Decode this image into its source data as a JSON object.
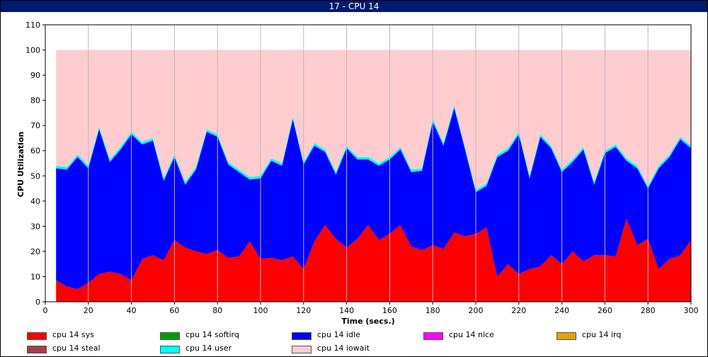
{
  "window": {
    "title": "17 - CPU 14"
  },
  "chart_data": {
    "type": "area",
    "stacked": true,
    "title": "",
    "xlabel": "Time (secs.)",
    "ylabel": "CPU Utilization",
    "xlim": [
      0,
      300
    ],
    "ylim": [
      0,
      110
    ],
    "xticks": [
      0,
      20,
      40,
      60,
      80,
      100,
      120,
      140,
      160,
      180,
      200,
      220,
      240,
      260,
      280,
      300
    ],
    "yticks": [
      0,
      10,
      20,
      30,
      40,
      50,
      60,
      70,
      80,
      90,
      100,
      110
    ],
    "grid": "vertical",
    "legend_position": "bottom",
    "x": [
      5,
      10,
      15,
      20,
      25,
      30,
      35,
      40,
      45,
      50,
      55,
      60,
      65,
      70,
      75,
      80,
      85,
      90,
      95,
      100,
      105,
      110,
      115,
      120,
      125,
      130,
      135,
      140,
      145,
      150,
      155,
      160,
      165,
      170,
      175,
      180,
      185,
      190,
      195,
      200,
      205,
      210,
      215,
      220,
      225,
      230,
      235,
      240,
      245,
      250,
      255,
      260,
      265,
      270,
      275,
      280,
      285,
      290,
      295,
      300
    ],
    "series": [
      {
        "name": "cpu 14 sys",
        "color": "#ff0000",
        "values": [
          8.5,
          6,
          5,
          7.5,
          11,
          12,
          11,
          8.5,
          17,
          18.5,
          16.5,
          24.5,
          21.5,
          20,
          19,
          20.5,
          17.5,
          18,
          24,
          17,
          17.5,
          16.5,
          18,
          13,
          24,
          30.5,
          25,
          21.5,
          25,
          30.5,
          24.5,
          27,
          30.5,
          22,
          20.5,
          22.5,
          21,
          27.5,
          26,
          27,
          29.5,
          10,
          15,
          11,
          13,
          14,
          18.5,
          15,
          20,
          16,
          18.5,
          18.5,
          18,
          33,
          22.5,
          25,
          13,
          17,
          18.5,
          24.5
        ]
      },
      {
        "name": "cpu 14 softirq",
        "color": "#00a000",
        "values": [
          0,
          0,
          0,
          0,
          0,
          0,
          0,
          0,
          0,
          0,
          0,
          0,
          0,
          0,
          0,
          0,
          0,
          0,
          0,
          0,
          0,
          0,
          0,
          0,
          0,
          0,
          0,
          0,
          0,
          0,
          0,
          0,
          0,
          0,
          0,
          0,
          0,
          0,
          0,
          0,
          0,
          0,
          0,
          0,
          0,
          0,
          0,
          0,
          0,
          0,
          0,
          0,
          0,
          0,
          0,
          0,
          0,
          0,
          0,
          0
        ]
      },
      {
        "name": "cpu 14 idle",
        "color": "#0000ff",
        "values": [
          44.5,
          46.5,
          52.5,
          45.5,
          57.5,
          43.5,
          49.5,
          58,
          45.5,
          45.5,
          31.5,
          33,
          25,
          32.5,
          48.5,
          45,
          37,
          33.5,
          24.5,
          32,
          38.5,
          37.5,
          54.5,
          41.5,
          38,
          29,
          25.5,
          39.5,
          31.5,
          26,
          29.5,
          29.5,
          30,
          29.5,
          31.5,
          49,
          41,
          49.5,
          34.5,
          16.5,
          16.5,
          47.5,
          45,
          55.5,
          36,
          51.5,
          42.5,
          36.5,
          35.5,
          44.5,
          28,
          40.5,
          43.5,
          23,
          30.5,
          20,
          40,
          40.5,
          46,
          36.5
        ]
      },
      {
        "name": "cpu 14 nice",
        "color": "#ff00ff",
        "values": [
          0,
          0,
          0,
          0,
          0,
          0,
          0,
          0,
          0,
          0,
          0,
          0,
          0,
          0,
          0,
          0,
          0,
          0,
          0,
          0,
          0,
          0,
          0,
          0,
          0,
          0,
          0,
          0,
          0,
          0,
          0,
          0,
          0,
          0,
          0,
          0,
          0,
          0,
          0,
          0,
          0,
          0,
          0,
          0,
          0,
          0,
          0,
          0,
          0,
          0,
          0,
          0,
          0,
          0,
          0,
          0,
          0,
          0,
          0,
          0
        ]
      },
      {
        "name": "cpu 14 irq",
        "color": "#e6a000",
        "values": [
          0,
          0,
          0,
          0,
          0,
          0,
          0,
          0,
          0,
          0,
          0,
          0,
          0,
          0,
          0,
          0,
          0,
          0,
          0,
          0,
          0,
          0,
          0,
          0,
          0,
          0,
          0,
          0,
          0,
          0,
          0,
          0,
          0,
          0,
          0,
          0,
          0,
          0,
          0,
          0,
          0,
          0,
          0,
          0,
          0,
          0,
          0,
          0,
          0,
          0,
          0,
          0,
          0,
          0,
          0,
          0,
          0,
          0,
          0,
          0
        ]
      },
      {
        "name": "cpu 14 steal",
        "color": "#a0404a",
        "values": [
          0,
          0,
          0,
          0,
          0,
          0,
          0,
          0,
          0,
          0,
          0,
          0,
          0,
          0,
          0,
          0,
          0,
          0,
          0,
          0,
          0,
          0,
          0,
          0,
          0,
          0,
          0,
          0,
          0,
          0,
          0,
          0,
          0,
          0,
          0,
          0,
          0,
          0,
          0,
          0,
          0,
          0,
          0,
          0,
          0,
          0,
          0,
          0,
          0,
          0,
          0,
          0,
          0,
          0,
          0,
          0,
          0,
          0,
          0,
          0
        ]
      },
      {
        "name": "cpu 14 user",
        "color": "#00ffff",
        "values": [
          1,
          1,
          1,
          1,
          1,
          1,
          1,
          1,
          1,
          1,
          1,
          1,
          1,
          1,
          1,
          1,
          1,
          1,
          1,
          1,
          1,
          1,
          1,
          1,
          1,
          1,
          1,
          1,
          1,
          1,
          1,
          1,
          1,
          1,
          1,
          1,
          1,
          1,
          1,
          1,
          1,
          1,
          1,
          1,
          1,
          1,
          1,
          1,
          1,
          1,
          1,
          1,
          1,
          1,
          1,
          1,
          1,
          1,
          1,
          1
        ]
      },
      {
        "name": "cpu 14 iowait",
        "color": "#ffccd0",
        "values": [
          46,
          46.5,
          41.5,
          46,
          30.5,
          43.5,
          38.5,
          32.5,
          36.5,
          35,
          51,
          41.5,
          52.5,
          46.5,
          31.5,
          33.5,
          44.5,
          47.5,
          50.5,
          50,
          43,
          45,
          26.5,
          44.5,
          37,
          39.5,
          48.5,
          38,
          42.5,
          42.5,
          45,
          42.5,
          38.5,
          47.5,
          47,
          27.5,
          37,
          22,
          38.5,
          55.5,
          53,
          41.5,
          39,
          32.5,
          50,
          33.5,
          38,
          47.5,
          43.5,
          38.5,
          52.5,
          40,
          37.5,
          43,
          46,
          54,
          46,
          41.5,
          34.5,
          38
        ]
      }
    ],
    "legend_layout": [
      [
        "cpu 14 sys",
        "cpu 14 softirq",
        "cpu 14 idle",
        "cpu 14 nice",
        "cpu 14 irq"
      ],
      [
        "cpu 14 steal",
        "cpu 14 user",
        "cpu 14 iowait"
      ]
    ]
  }
}
